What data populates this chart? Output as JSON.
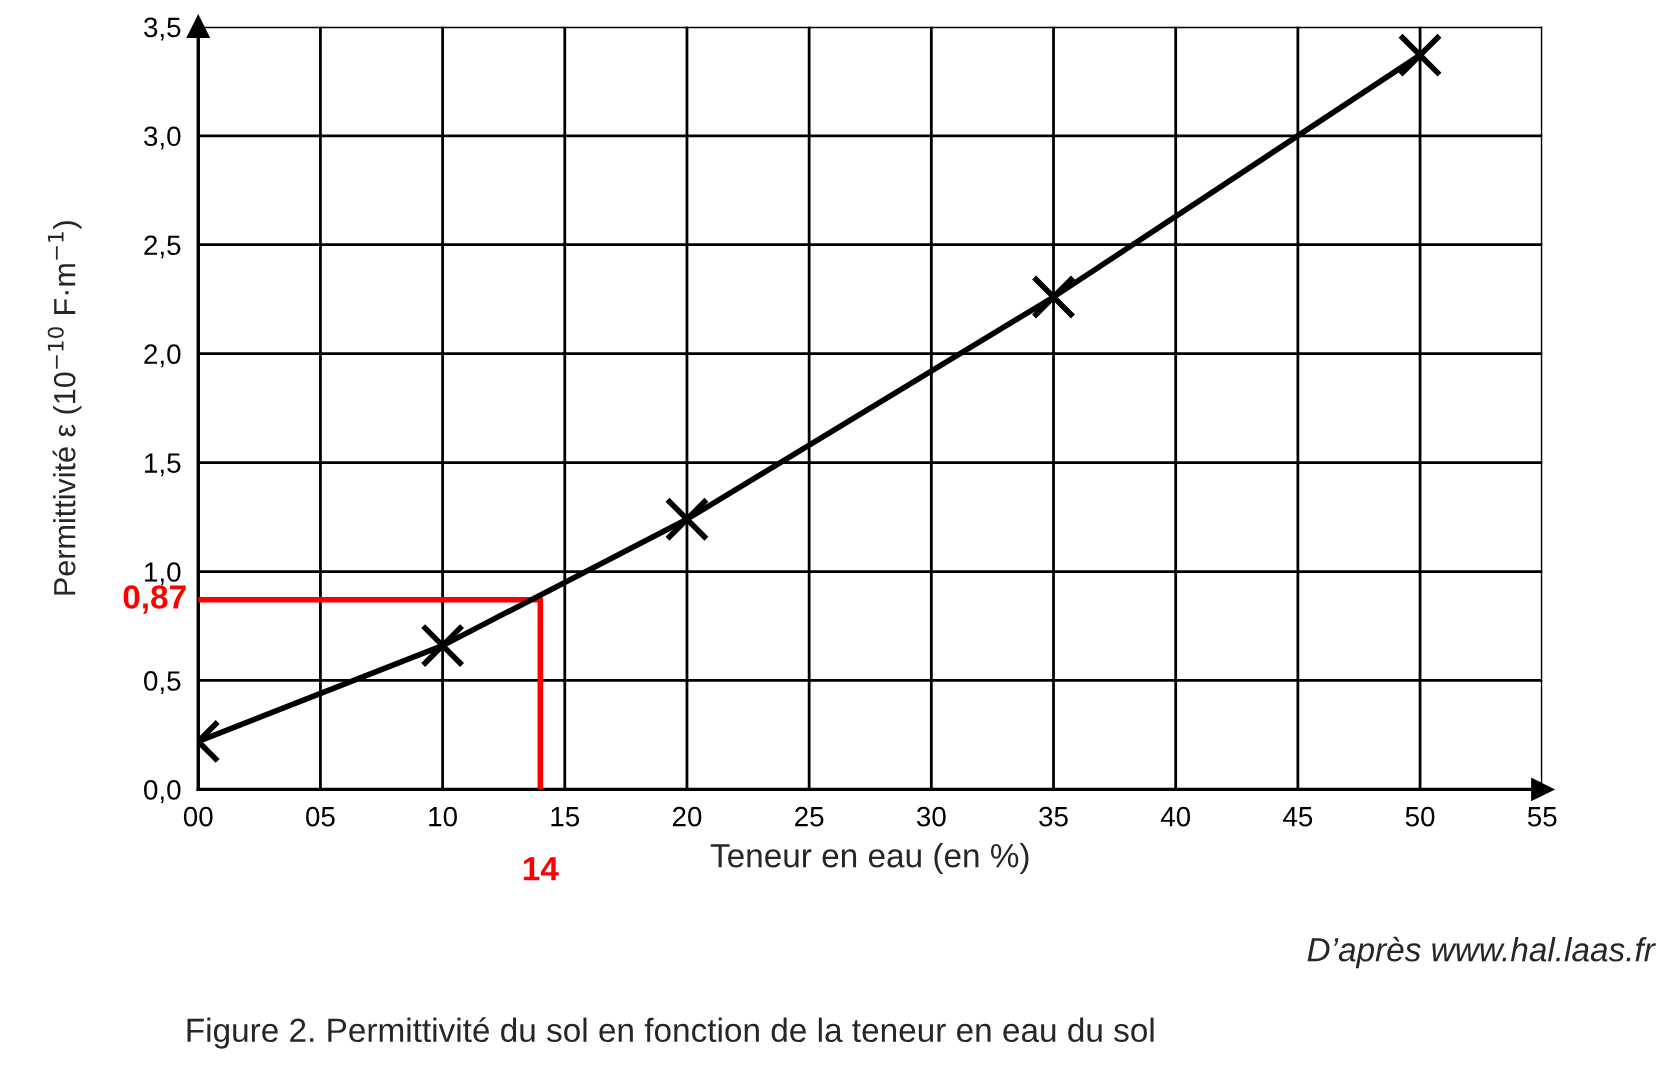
{
  "chart_data": {
    "type": "line",
    "x": [
      0,
      10,
      20,
      35,
      50
    ],
    "series": [
      {
        "color": "#000000",
        "values": [
          0.22,
          0.66,
          1.24,
          2.26,
          3.37
        ]
      }
    ],
    "marker": "cross",
    "line_style": "solid",
    "xlabel": "Teneur en eau (en %)",
    "ylabel": "Permittivité ε (10$^{−10}$ F·m$^{−1}$)",
    "xlim": [
      0,
      55
    ],
    "xticks": [
      {
        "value": 0,
        "label": "00"
      },
      {
        "value": 5,
        "label": "05"
      },
      10,
      15,
      20,
      25,
      30,
      35,
      40,
      45,
      50,
      55
    ],
    "ylim": [
      0,
      3.5
    ],
    "yticks": [
      {
        "value": 0,
        "label": "0,0"
      },
      {
        "value": 0.5,
        "label": "0,5"
      },
      {
        "value": 1,
        "label": "1,0"
      },
      {
        "value": 1.5,
        "label": "1,5"
      },
      {
        "value": 2,
        "label": "2,0"
      },
      {
        "value": 2.5,
        "label": "2,5"
      },
      {
        "value": 3,
        "label": "3,0"
      },
      {
        "value": 3.5,
        "label": "3,5"
      }
    ],
    "grid": true,
    "legend": false,
    "ref_lines": [
      {
        "axis": "y",
        "value": 0.87,
        "label": "0,87",
        "color": "#ff0000"
      },
      {
        "axis": "x",
        "value": 14,
        "label": "14",
        "color": "#ff0000"
      }
    ],
    "annotations": [
      "D’après www.hal.laas.fr",
      "Figure 2. Permittivité du sol en fonction de la teneur en eau du sol"
    ]
  }
}
